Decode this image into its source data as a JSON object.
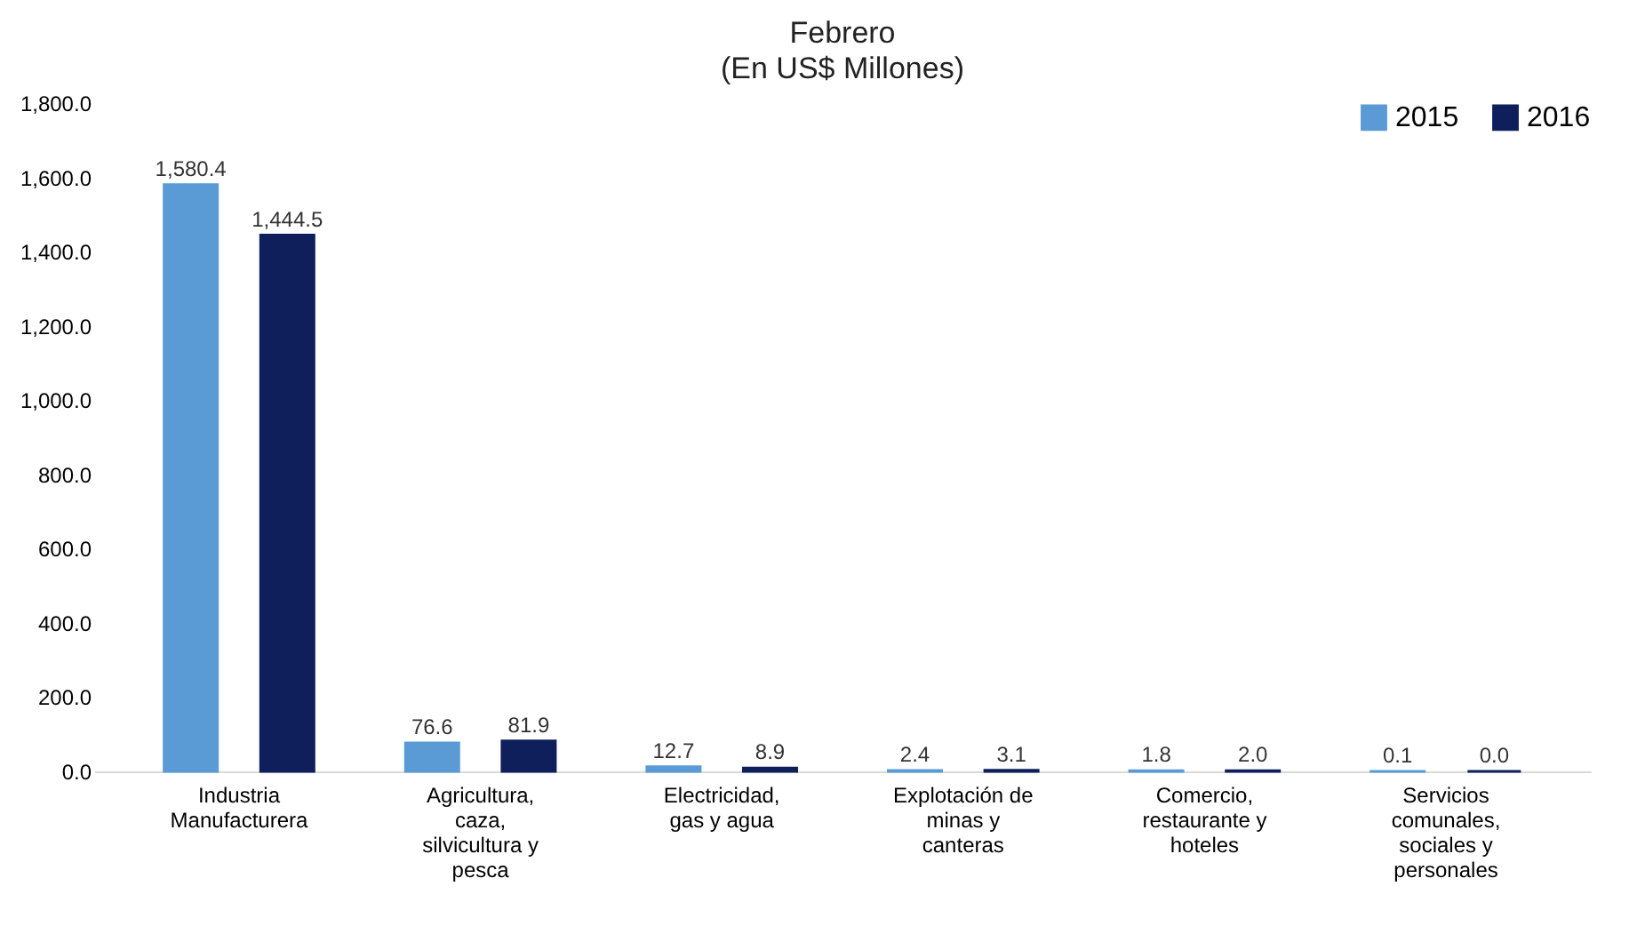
{
  "chart_data": {
    "type": "bar",
    "title": "Febrero",
    "subtitle": "(En US$ Millones)",
    "categories": [
      "Industria Manufacturera",
      "Agricultura, caza, silvicultura y pesca",
      "Electricidad, gas y agua",
      "Explotación de minas y canteras",
      "Comercio, restaurante y hoteles",
      "Servicios comunales, sociales y personales"
    ],
    "series": [
      {
        "name": "2015",
        "color": "#5b9bd5",
        "values": [
          1580.4,
          76.6,
          12.7,
          2.4,
          1.8,
          0.1
        ],
        "value_labels": [
          "1,580.4",
          "76.6",
          "12.7",
          "2.4",
          "1.8",
          "0.1"
        ]
      },
      {
        "name": "2016",
        "color": "#0e1f5b",
        "values": [
          1444.5,
          81.9,
          8.9,
          3.1,
          2.0,
          0.0
        ],
        "value_labels": [
          "1,444.5",
          "81.9",
          "8.9",
          "3.1",
          "2.0",
          "0.0"
        ]
      }
    ],
    "ylim": [
      0,
      1800
    ],
    "yticks": [
      {
        "value": 0,
        "label": "0.0"
      },
      {
        "value": 200,
        "label": "200.0"
      },
      {
        "value": 400,
        "label": "400.0"
      },
      {
        "value": 600,
        "label": "600.0"
      },
      {
        "value": 800,
        "label": "800.0"
      },
      {
        "value": 1000,
        "label": "1,000.0"
      },
      {
        "value": 1200,
        "label": "1,200.0"
      },
      {
        "value": 1400,
        "label": "1,400.0"
      },
      {
        "value": 1600,
        "label": "1,600.0"
      },
      {
        "value": 1800,
        "label": "1,800.0"
      }
    ],
    "grid": false,
    "legend": "top right"
  }
}
